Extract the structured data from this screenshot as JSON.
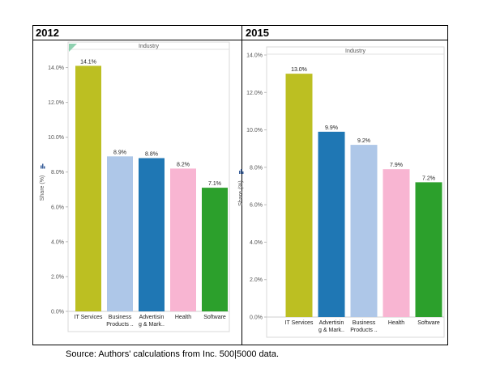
{
  "panels": [
    {
      "year": "2012"
    },
    {
      "year": "2015"
    }
  ],
  "caption": "Source: Authors' calculations from Inc. 500|5000 data.",
  "colors": {
    "IT Services": "#bcbf22",
    "Business Products ..": "#aec7e8",
    "Advertisin g & Mark..": "#1f77b4",
    "Health": "#f8b5d2",
    "Software": "#2ca02c"
  },
  "chart_data": [
    {
      "type": "bar",
      "title": "Industry",
      "ylabel": "Share (%)",
      "xlabel": "",
      "ylim": [
        0,
        15
      ],
      "yticks": [
        "0.0%",
        "2.0%",
        "4.0%",
        "6.0%",
        "8.0%",
        "10.0%",
        "12.0%",
        "14.0%"
      ],
      "categories": [
        [
          "IT Services"
        ],
        [
          "Business",
          "Products .."
        ],
        [
          "Advertisin",
          "g & Mark.."
        ],
        [
          "Health"
        ],
        [
          "Software"
        ]
      ],
      "color_keys": [
        "IT Services",
        "Business Products ..",
        "Advertisin g & Mark..",
        "Health",
        "Software"
      ],
      "values": [
        14.1,
        8.9,
        8.8,
        8.2,
        7.1
      ],
      "labels": [
        "14.1%",
        "8.9%",
        "8.8%",
        "8.2%",
        "7.1%"
      ]
    },
    {
      "type": "bar",
      "title": "Industry",
      "ylabel": "Share (%)",
      "xlabel": "",
      "ylim": [
        0,
        14
      ],
      "yticks": [
        "0.0%",
        "2.0%",
        "4.0%",
        "6.0%",
        "8.0%",
        "10.0%",
        "12.0%",
        "14.0%"
      ],
      "categories": [
        [
          "IT Services"
        ],
        [
          "Advertisin",
          "g & Mark.."
        ],
        [
          "Business",
          "Products .."
        ],
        [
          "Health"
        ],
        [
          "Software"
        ]
      ],
      "color_keys": [
        "IT Services",
        "Advertisin g & Mark..",
        "Business Products ..",
        "Health",
        "Software"
      ],
      "values": [
        13.0,
        9.9,
        9.2,
        7.9,
        7.2
      ],
      "labels": [
        "13.0%",
        "9.9%",
        "9.2%",
        "7.9%",
        "7.2%"
      ]
    }
  ]
}
